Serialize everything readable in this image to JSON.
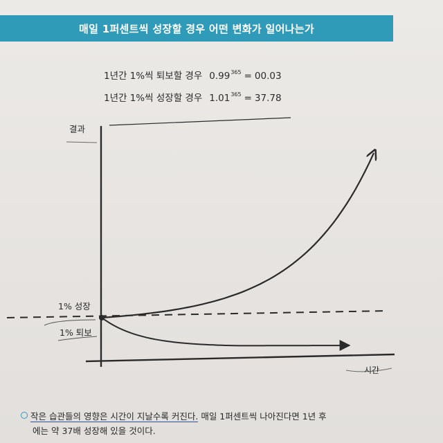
{
  "title": "매일 1퍼센트씩 성장할 경우 어떤 변화가 일어나는가",
  "formulas": [
    {
      "label": "1년간 1%씩 퇴보할 경우",
      "base": "0.99",
      "exponent": "365",
      "equals": "=",
      "result": "00.03"
    },
    {
      "label": "1년간 1%씩 성장할 경우",
      "base": "1.01",
      "exponent": "365",
      "equals": "=",
      "result": "37.78"
    }
  ],
  "chart_data": {
    "type": "line",
    "ylabel": "결과",
    "xlabel": "시간",
    "series": [
      {
        "name": "1% 성장",
        "start": 1.0,
        "end": 37.78
      },
      {
        "name": "1% 퇴보",
        "start": 1.0,
        "end": 0.03
      }
    ],
    "baseline": 1.0,
    "baseline_style": "dashed"
  },
  "note": {
    "highlight": "작은 습관들의 영향은 시간이 지날수록 커진다.",
    "rest_line1": " 매일 1퍼센트씩 나아진다면 1년 후",
    "line2": "에는 약 37배 성장해 있을 것이다."
  },
  "colors": {
    "title_bar": "#2f9bb8",
    "ink": "#2a2a2a",
    "underline": "#2f4fa0"
  }
}
